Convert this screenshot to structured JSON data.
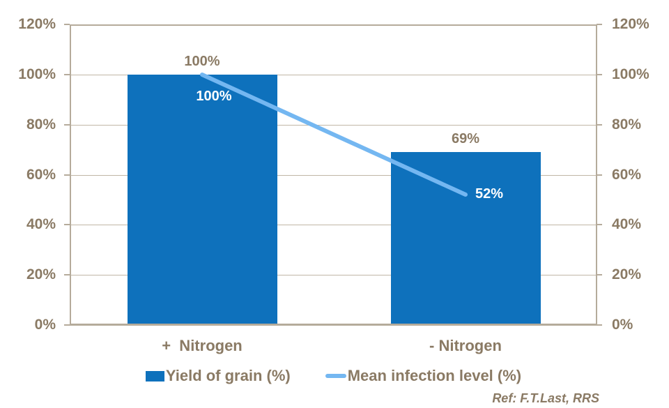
{
  "chart_data": {
    "type": "bar",
    "title": "",
    "categories": [
      "+  Nitrogen",
      "- Nitrogen"
    ],
    "series": [
      {
        "name": "Yield of grain (%)",
        "chart_type": "bar",
        "values": [
          100,
          69
        ],
        "data_labels": [
          "100%",
          "69%"
        ]
      },
      {
        "name": "Mean infection level (%)",
        "chart_type": "line",
        "values": [
          100,
          52
        ],
        "data_labels": [
          "100%",
          "52%"
        ]
      }
    ],
    "y_axis": {
      "min": 0,
      "max": 120,
      "step": 20,
      "ticks": [
        0,
        20,
        40,
        60,
        80,
        100,
        120
      ],
      "tick_labels": [
        "0%",
        "20%",
        "40%",
        "60%",
        "80%",
        "100%",
        "120%"
      ],
      "dual_axis": true
    },
    "grid": true,
    "legend_position": "bottom",
    "annotation": "Ref: F.T.Last, RRS"
  },
  "colors": {
    "bar_fill": "#0E71BC",
    "line_stroke": "#74B7F1",
    "axis_text": "#8A7A64",
    "frame": "#B5AB9B",
    "gridline": "#C0B6A6",
    "data_label_on_fill": "#FFFFFF",
    "background": "#FFFFFF"
  }
}
